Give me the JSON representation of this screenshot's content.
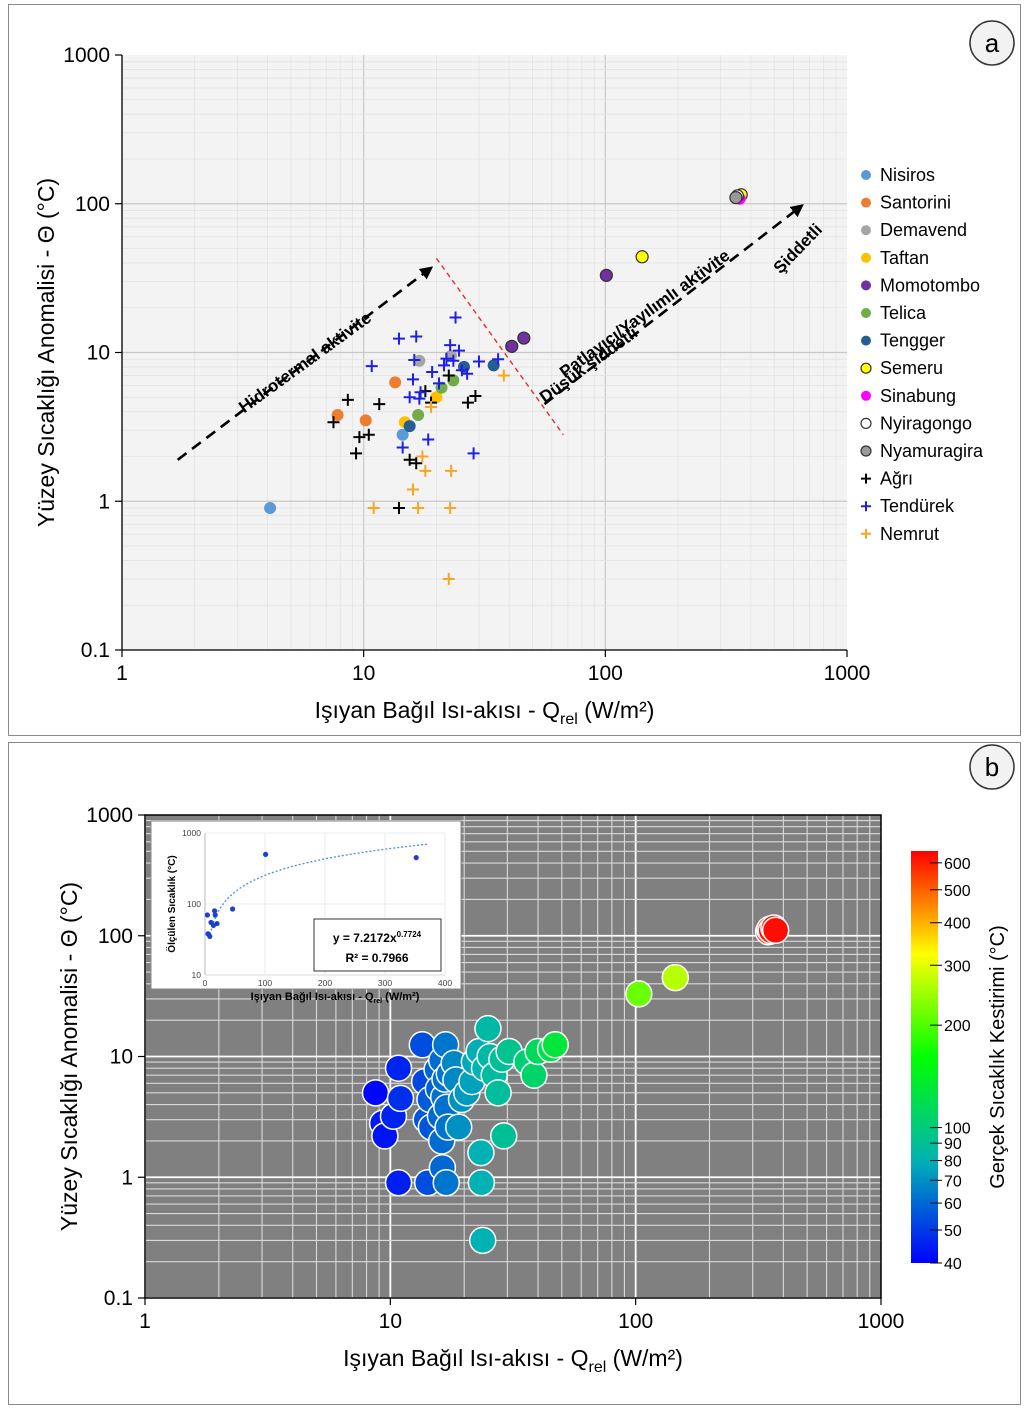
{
  "chart_data": [
    {
      "panel_label": "a",
      "type": "scatter",
      "xlabel": "Işıyan Bağıl Isı-akısı - Q",
      "xlabel_sub": "rel",
      "xlabel_unit": " (W/m²)",
      "ylabel": "Yüzey Sıcaklığı Anomalisi - Θ (°C)",
      "xscale": "log",
      "yscale": "log",
      "xlim": [
        1,
        1000
      ],
      "ylim": [
        0.1,
        1000
      ],
      "x_ticks": [
        "1",
        "10",
        "100",
        "1000"
      ],
      "y_ticks": [
        "0.1",
        "1",
        "10",
        "100",
        "1000"
      ],
      "grid": true,
      "legend_position": "right",
      "series": [
        {
          "name": "Nisiros",
          "marker": "circle",
          "color": "#5b9bd5",
          "points": [
            [
              4.1,
              0.9
            ],
            [
              14.5,
              2.8
            ]
          ]
        },
        {
          "name": "Santorini",
          "marker": "circle",
          "color": "#ed7d31",
          "points": [
            [
              7.8,
              3.8
            ],
            [
              10.2,
              3.5
            ],
            [
              13.5,
              6.3
            ]
          ]
        },
        {
          "name": "Demavend",
          "marker": "circle",
          "color": "#a5a5a5",
          "points": [
            [
              17,
              8.8
            ],
            [
              23,
              9.5
            ]
          ]
        },
        {
          "name": "Taftan",
          "marker": "circle",
          "color": "#ffc000",
          "points": [
            [
              14.8,
              3.4
            ],
            [
              20,
              5
            ]
          ]
        },
        {
          "name": "Momotombo",
          "marker": "circle",
          "color": "#7030a0",
          "points": [
            [
              41,
              11
            ],
            [
              46,
              12.5
            ],
            [
              101,
              33
            ]
          ]
        },
        {
          "name": "Telica",
          "marker": "circle",
          "color": "#70ad47",
          "points": [
            [
              16.8,
              3.8
            ],
            [
              21,
              5.8
            ],
            [
              23.5,
              6.5
            ]
          ]
        },
        {
          "name": "Tengger",
          "marker": "circle",
          "color": "#255e91",
          "points": [
            [
              15.5,
              3.2
            ],
            [
              26,
              8
            ],
            [
              34.5,
              8.2
            ]
          ]
        },
        {
          "name": "Semeru",
          "marker": "circle",
          "color": "#ffff00",
          "points": [
            [
              142,
              44
            ],
            [
              365,
              115
            ]
          ]
        },
        {
          "name": "Sinabung",
          "marker": "circle",
          "color": "#ff00ff",
          "points": [
            [
              360,
              108
            ]
          ]
        },
        {
          "name": "Nyiragongo",
          "marker": "circle",
          "color": "#ffffff",
          "points": [
            [
              352,
              113
            ]
          ]
        },
        {
          "name": "Nyamuragira",
          "marker": "circle",
          "color": "#999999",
          "points": [
            [
              347,
              110
            ]
          ]
        },
        {
          "name": "Ağrı",
          "marker": "plus",
          "color": "#000000",
          "points": [
            [
              7.5,
              3.4
            ],
            [
              8.6,
              4.8
            ],
            [
              9.3,
              2.1
            ],
            [
              9.6,
              2.7
            ],
            [
              10.5,
              2.8
            ],
            [
              11.6,
              4.5
            ],
            [
              14,
              0.9
            ],
            [
              15.5,
              1.9
            ],
            [
              16.5,
              1.8
            ],
            [
              18,
              5.5
            ],
            [
              19,
              4.6
            ],
            [
              22.5,
              7
            ],
            [
              27,
              4.6
            ],
            [
              29,
              5.1
            ]
          ]
        },
        {
          "name": "Tendürek",
          "marker": "plus",
          "color": "#1f1fe6",
          "points": [
            [
              10.8,
              8.1
            ],
            [
              14,
              12.4
            ],
            [
              14.5,
              2.3
            ],
            [
              15.5,
              5
            ],
            [
              16,
              6.6
            ],
            [
              16.2,
              8.9
            ],
            [
              16.5,
              12.8
            ],
            [
              17,
              4.9
            ],
            [
              17.2,
              5.4
            ],
            [
              18.5,
              2.6
            ],
            [
              19.2,
              7.4
            ],
            [
              20.5,
              6.2
            ],
            [
              21.5,
              8.2
            ],
            [
              22,
              9.1
            ],
            [
              22.8,
              11.2
            ],
            [
              23.5,
              8.8
            ],
            [
              24,
              17.2
            ],
            [
              24.8,
              10.3
            ],
            [
              25.5,
              7.6
            ],
            [
              26.8,
              7.2
            ],
            [
              28.5,
              2.1
            ],
            [
              30,
              8.7
            ],
            [
              36,
              9
            ]
          ]
        },
        {
          "name": "Nemrut",
          "marker": "plus",
          "color": "#f5a623",
          "points": [
            [
              11,
              0.9
            ],
            [
              16,
              1.2
            ],
            [
              16.8,
              0.9
            ],
            [
              18,
              1.6
            ],
            [
              17.5,
              2
            ],
            [
              19,
              4.3
            ],
            [
              22.5,
              0.3
            ],
            [
              22.8,
              0.9
            ],
            [
              23,
              1.6
            ],
            [
              38,
              7
            ]
          ]
        }
      ],
      "annotations": [
        {
          "text": "Hidrotermal aktivite"
        },
        {
          "text": "Patlayıcı/Yayılımlı aktivite"
        },
        {
          "text": "Düşük şiddetli"
        },
        {
          "text": "Şiddetli"
        }
      ]
    },
    {
      "panel_label": "b",
      "type": "scatter",
      "xlabel": "Işıyan Bağıl Isı-akısı - Q",
      "xlabel_sub": "rel",
      "xlabel_unit": " (W/m²)",
      "ylabel": "Yüzey Sıcaklığı Anomalisi - Θ (°C)",
      "xscale": "log",
      "yscale": "log",
      "xlim": [
        1,
        1000
      ],
      "ylim": [
        0.1,
        1000
      ],
      "x_ticks": [
        "1",
        "10",
        "100",
        "1000"
      ],
      "y_ticks": [
        "0.1",
        "1",
        "10",
        "100",
        "1000"
      ],
      "grid": true,
      "background": "#808080",
      "points": [
        [
          8.7,
          5,
          41
        ],
        [
          9.3,
          2.8,
          44
        ],
        [
          9.5,
          2.2,
          43
        ],
        [
          10.3,
          3.2,
          46
        ],
        [
          10.8,
          8,
          46
        ],
        [
          10.8,
          0.9,
          45
        ],
        [
          11,
          4.5,
          48
        ],
        [
          13.5,
          12.5,
          54
        ],
        [
          13.8,
          6.2,
          53
        ],
        [
          14,
          3,
          56
        ],
        [
          14.2,
          0.9,
          54
        ],
        [
          14.5,
          4.4,
          57
        ],
        [
          14.7,
          2.6,
          56
        ],
        [
          15.5,
          7.8,
          59
        ],
        [
          15.7,
          5.4,
          58
        ],
        [
          16,
          3.2,
          60
        ],
        [
          16.2,
          2,
          61
        ],
        [
          16.2,
          9.3,
          61
        ],
        [
          16.3,
          1.2,
          60
        ],
        [
          16.5,
          4.6,
          62
        ],
        [
          16.7,
          6.5,
          62
        ],
        [
          16.8,
          12.5,
          63
        ],
        [
          16.9,
          0.9,
          63
        ],
        [
          17,
          3.8,
          62
        ],
        [
          17.2,
          2.6,
          63
        ],
        [
          17.4,
          7.2,
          63
        ],
        [
          18.2,
          8.8,
          68
        ],
        [
          18.5,
          6.4,
          68
        ],
        [
          19,
          2.6,
          70
        ],
        [
          19.5,
          4.4,
          71
        ],
        [
          20.5,
          5,
          73
        ],
        [
          21.5,
          6.2,
          75
        ],
        [
          22,
          9,
          77
        ],
        [
          23,
          11,
          79
        ],
        [
          23.4,
          1.6,
          80
        ],
        [
          23.5,
          0.9,
          80
        ],
        [
          23.8,
          0.3,
          80
        ],
        [
          24.2,
          8,
          81
        ],
        [
          25,
          17,
          85
        ],
        [
          25.5,
          10,
          85
        ],
        [
          26.5,
          7,
          87
        ],
        [
          27.5,
          5,
          88
        ],
        [
          28.5,
          9.5,
          90
        ],
        [
          29,
          2.2,
          90
        ],
        [
          30.5,
          11,
          93
        ],
        [
          36,
          9,
          103
        ],
        [
          38.5,
          7,
          108
        ],
        [
          40,
          11,
          113
        ],
        [
          45,
          11.5,
          122
        ],
        [
          47,
          12.5,
          128
        ],
        [
          103,
          33,
          215
        ],
        [
          145,
          45,
          265
        ],
        [
          348,
          108,
          600
        ],
        [
          352,
          113,
          610
        ],
        [
          357,
          110,
          615
        ],
        [
          366,
          116,
          622
        ],
        [
          372,
          111,
          628
        ]
      ],
      "colorbar": {
        "label": "Gerçek Sıcaklık Kestirimi (°C)",
        "scale": "log",
        "range": [
          40,
          650
        ],
        "tick_labels": [
          "40",
          "50",
          "60",
          "70",
          "80",
          "90",
          "100",
          "200",
          "300",
          "400",
          "500",
          "600"
        ],
        "colors": [
          "#0000ff",
          "#00b3b3",
          "#00ff00",
          "#ffff00",
          "#ff0000"
        ]
      },
      "inset": {
        "type": "scatter",
        "xlabel": "Işıyan Bağıl Isı-akısı - Q",
        "xlabel_sub": "rel",
        "xlabel_unit": " (W/m²)",
        "ylabel": "Ölçülen Sıcaklık (°C)",
        "xscale": "linear",
        "yscale": "log",
        "xlim": [
          0,
          400
        ],
        "ylim": [
          10,
          1000
        ],
        "x_ticks": [
          "0",
          "100",
          "200",
          "300",
          "400"
        ],
        "y_ticks": [
          "10",
          "100",
          "1000"
        ],
        "points": [
          [
            4,
            70
          ],
          [
            5,
            38
          ],
          [
            8,
            35
          ],
          [
            10,
            55
          ],
          [
            14,
            50
          ],
          [
            16,
            80
          ],
          [
            17,
            70
          ],
          [
            20,
            53
          ],
          [
            46,
            85
          ],
          [
            101,
            500
          ],
          [
            352,
            450
          ]
        ],
        "fit": {
          "type": "power",
          "a": 7.2172,
          "b": 0.7724
        },
        "equation_prefix": "y = 7.2172x",
        "equation_exponent": "0.7724",
        "r2_label": "R² = 0.7966"
      }
    }
  ]
}
